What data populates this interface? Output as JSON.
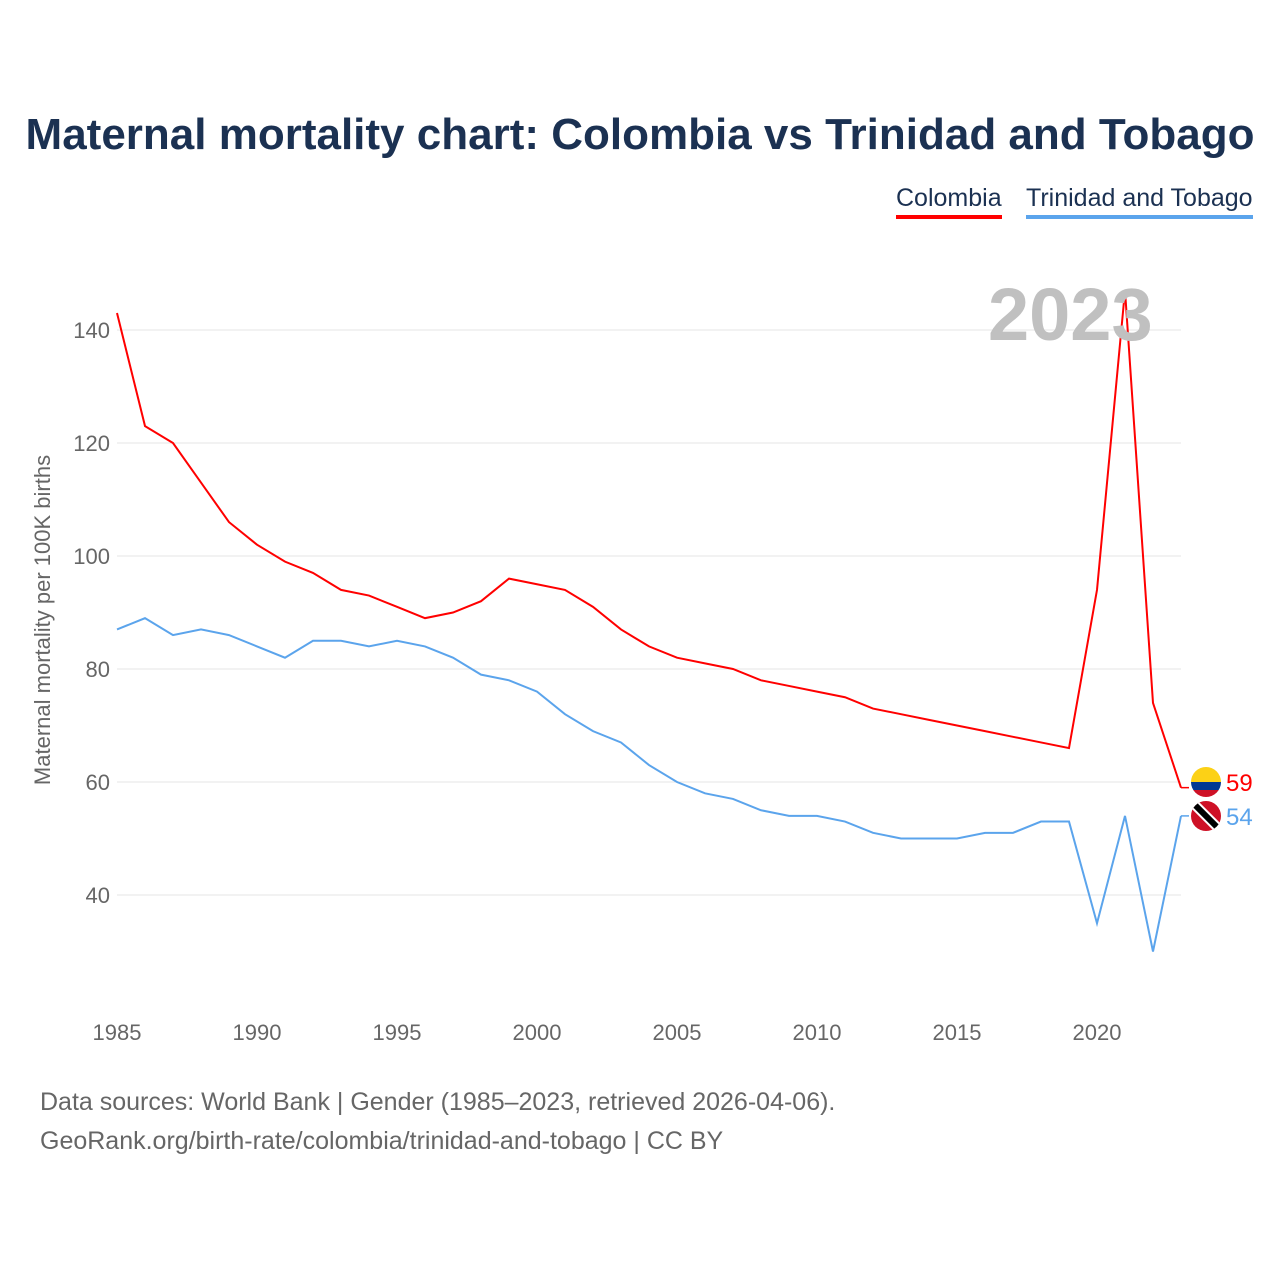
{
  "title": "Maternal mortality chart: Colombia vs Trinidad and Tobago",
  "year_label": "2023",
  "footer": {
    "line1": "Data sources: World Bank | Gender (1985–2023, retrieved 2026-04-06).",
    "line2": "GeoRank.org/birth-rate/colombia/trinidad-and-tobago | CC BY"
  },
  "chart_data": {
    "type": "line",
    "title": "Maternal mortality chart: Colombia vs Trinidad and Tobago",
    "xlabel": "",
    "ylabel": "Maternal mortality per 100K births",
    "xlim": [
      1985,
      2023
    ],
    "ylim": [
      25,
      150
    ],
    "yticks": [
      40,
      60,
      80,
      100,
      120,
      140
    ],
    "xticks": [
      1985,
      1990,
      1995,
      2000,
      2005,
      2010,
      2015,
      2020
    ],
    "grid": true,
    "legend": "top-right",
    "x": [
      1985,
      1986,
      1987,
      1988,
      1989,
      1990,
      1991,
      1992,
      1993,
      1994,
      1995,
      1996,
      1997,
      1998,
      1999,
      2000,
      2001,
      2002,
      2003,
      2004,
      2005,
      2006,
      2007,
      2008,
      2009,
      2010,
      2011,
      2012,
      2013,
      2014,
      2015,
      2016,
      2017,
      2018,
      2019,
      2020,
      2021,
      2022,
      2023
    ],
    "series": [
      {
        "name": "Colombia",
        "color": "#ff0000",
        "end_label": "59",
        "flag": "colombia-flag",
        "values": [
          143,
          123,
          120,
          113,
          106,
          102,
          99,
          97,
          94,
          93,
          91,
          89,
          90,
          92,
          96,
          95,
          94,
          91,
          87,
          84,
          82,
          81,
          80,
          78,
          77,
          76,
          75,
          73,
          72,
          71,
          70,
          69,
          68,
          67,
          66,
          94,
          147,
          74,
          59
        ]
      },
      {
        "name": "Trinidad and Tobago",
        "color": "#5ba4ec",
        "end_label": "54",
        "flag": "trinidad-flag",
        "values": [
          87,
          89,
          86,
          87,
          86,
          84,
          82,
          85,
          85,
          84,
          85,
          84,
          82,
          79,
          78,
          76,
          72,
          69,
          67,
          63,
          60,
          58,
          57,
          55,
          54,
          54,
          53,
          51,
          50,
          50,
          50,
          51,
          51,
          53,
          53,
          35,
          54,
          30,
          54
        ]
      }
    ]
  }
}
